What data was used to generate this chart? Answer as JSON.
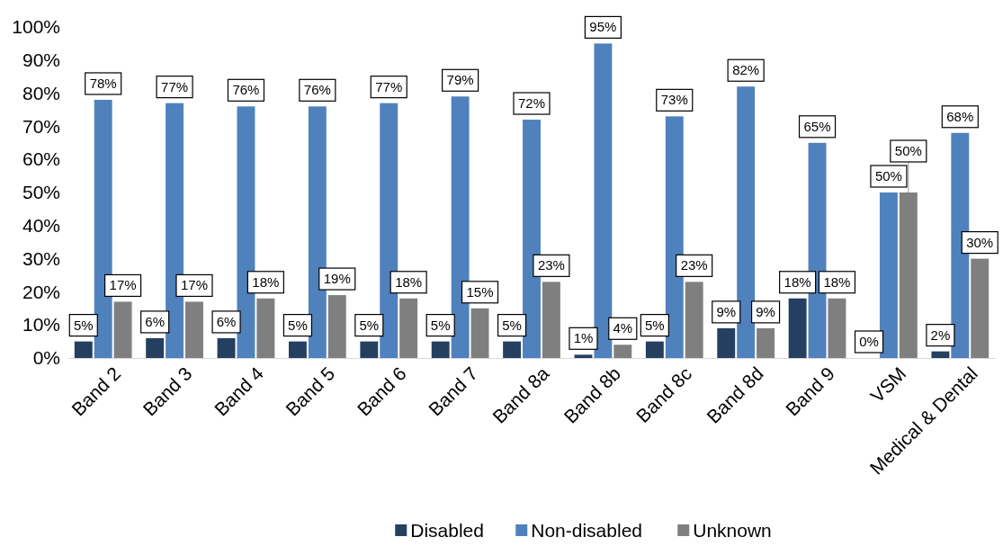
{
  "chart_data": {
    "type": "bar",
    "categories": [
      "Band 2",
      "Band 3",
      "Band 4",
      "Band 5",
      "Band 6",
      "Band 7",
      "Band 8a",
      "Band 8b",
      "Band 8c",
      "Band 8d",
      "Band 9",
      "VSM",
      "Medical & Dental"
    ],
    "series": [
      {
        "name": "Disabled",
        "color": "#243f60",
        "values": [
          5,
          6,
          6,
          5,
          5,
          5,
          5,
          1,
          5,
          9,
          18,
          0,
          2
        ],
        "value_labels": [
          "5%",
          "6%",
          "6%",
          "5%",
          "5%",
          "5%",
          "5%",
          "1%",
          "5%",
          "9%",
          "18%",
          "0%",
          "2%"
        ]
      },
      {
        "name": "Non-disabled",
        "color": "#4f81bd",
        "values": [
          78,
          77,
          76,
          76,
          77,
          79,
          72,
          95,
          73,
          82,
          65,
          50,
          68
        ],
        "value_labels": [
          "78%",
          "77%",
          "76%",
          "76%",
          "77%",
          "79%",
          "72%",
          "95%",
          "73%",
          "82%",
          "65%",
          "50%",
          "68%"
        ]
      },
      {
        "name": "Unknown",
        "color": "#7f7f7f",
        "values": [
          17,
          17,
          18,
          19,
          18,
          15,
          23,
          4,
          23,
          9,
          18,
          50,
          30
        ],
        "value_labels": [
          "17%",
          "17%",
          "18%",
          "19%",
          "18%",
          "15%",
          "23%",
          "4%",
          "23%",
          "9%",
          "18%",
          "50%",
          "30%"
        ]
      }
    ],
    "ylim": [
      0,
      100
    ],
    "yticks": [
      {
        "value": 0,
        "label": "0%"
      },
      {
        "value": 10,
        "label": "10%"
      },
      {
        "value": 20,
        "label": "20%"
      },
      {
        "value": 30,
        "label": "30%"
      },
      {
        "value": 40,
        "label": "40%"
      },
      {
        "value": 50,
        "label": "50%"
      },
      {
        "value": 60,
        "label": "60%"
      },
      {
        "value": 70,
        "label": "70%"
      },
      {
        "value": 80,
        "label": "80%"
      },
      {
        "value": 90,
        "label": "90%"
      },
      {
        "value": 100,
        "label": "100%"
      }
    ],
    "grid": false,
    "legend": "bottom"
  }
}
